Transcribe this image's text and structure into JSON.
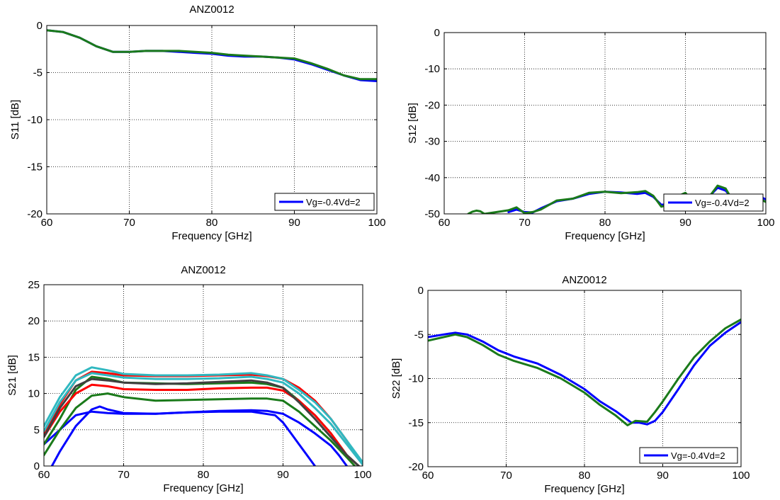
{
  "chart_data": [
    {
      "id": "s11",
      "type": "line",
      "title": "ANZ0012",
      "xlabel": "Frequency [GHz]",
      "ylabel": "S11 [dB]",
      "xlim": [
        60,
        100
      ],
      "ylim": [
        -20,
        0
      ],
      "xticks": [
        "60",
        "70",
        "80",
        "90",
        "100"
      ],
      "yticks": [
        "-20",
        "-15",
        "-10",
        "-5",
        "0"
      ],
      "grid": true,
      "legend": {
        "label": "Vg=-0.4Vd=2",
        "placement": "bottom-right"
      },
      "series": [
        {
          "name": "Vg=-0.4Vd=2",
          "color": "#0000ff",
          "x": [
            60,
            62,
            64,
            66,
            68,
            70,
            72,
            74,
            76,
            78,
            80,
            82,
            84,
            86,
            88,
            90,
            92,
            94,
            96,
            98,
            100
          ],
          "y": [
            -0.5,
            -0.7,
            -1.3,
            -2.2,
            -2.8,
            -2.8,
            -2.7,
            -2.7,
            -2.8,
            -2.9,
            -3.0,
            -3.2,
            -3.3,
            -3.3,
            -3.4,
            -3.6,
            -4.1,
            -4.7,
            -5.3,
            -5.8,
            -5.9
          ]
        },
        {
          "color": "#1a7a1a",
          "x": [
            60,
            62,
            64,
            66,
            68,
            70,
            72,
            74,
            76,
            78,
            80,
            82,
            84,
            86,
            88,
            90,
            92,
            94,
            96,
            98,
            100
          ],
          "y": [
            -0.5,
            -0.7,
            -1.3,
            -2.2,
            -2.8,
            -2.8,
            -2.7,
            -2.7,
            -2.7,
            -2.8,
            -2.9,
            -3.1,
            -3.2,
            -3.3,
            -3.4,
            -3.5,
            -4.0,
            -4.6,
            -5.3,
            -5.7,
            -5.7
          ]
        }
      ]
    },
    {
      "id": "s12",
      "type": "line",
      "title": "",
      "xlabel": "Frequency [GHz]",
      "ylabel": "S12 [dB]",
      "xlim": [
        60,
        100
      ],
      "ylim": [
        -50,
        0
      ],
      "xticks": [
        "60",
        "70",
        "80",
        "90",
        "100"
      ],
      "yticks": [
        "-50",
        "-40",
        "-30",
        "-20",
        "-10",
        "0"
      ],
      "grid": true,
      "legend": {
        "label": "Vg=-0.4Vd=2",
        "placement": "bottom-right"
      },
      "series": [
        {
          "name": "Vg=-0.4Vd=2",
          "color": "#0000ff",
          "x": [
            68,
            69,
            70,
            71,
            72,
            74,
            76,
            78,
            80,
            82,
            84,
            85,
            86,
            87,
            88,
            89,
            90,
            91,
            92,
            93,
            94,
            95,
            96,
            97,
            98,
            99,
            100
          ],
          "y": [
            -49.5,
            -48.8,
            -49.5,
            -49.6,
            -48.5,
            -46.5,
            -45.8,
            -44.5,
            -43.9,
            -44.1,
            -44.5,
            -44.2,
            -45.3,
            -47.5,
            -47.2,
            -45.0,
            -45.5,
            -47.0,
            -46.2,
            -45.1,
            -42.8,
            -43.6,
            -46.2,
            -46.6,
            -45.2,
            -45.0,
            -46.0
          ]
        },
        {
          "color": "#1a7a1a",
          "x": [
            63,
            63.5,
            64,
            64.5,
            65,
            68,
            69,
            70,
            71,
            72,
            74,
            76,
            78,
            80,
            82,
            84,
            85,
            86,
            87,
            88,
            89,
            90,
            91,
            92,
            93,
            94,
            95,
            96,
            97,
            98,
            99,
            100
          ],
          "y": [
            -50,
            -49.4,
            -49.1,
            -49.3,
            -50,
            -49.0,
            -48.2,
            -49.8,
            -49.5,
            -48.8,
            -46.3,
            -45.8,
            -44.2,
            -43.9,
            -44.3,
            -44.0,
            -43.7,
            -45.0,
            -48.0,
            -47.4,
            -45.2,
            -44.2,
            -46.8,
            -46.8,
            -45.2,
            -42.2,
            -43.0,
            -46.8,
            -47.2,
            -45.8,
            -45.6,
            -46.7
          ]
        }
      ]
    },
    {
      "id": "s21",
      "type": "line",
      "title": "ANZ0012",
      "xlabel": "Frequency [GHz]",
      "ylabel": "S21 [dB]",
      "xlim": [
        60,
        100
      ],
      "ylim": [
        0,
        25
      ],
      "xticks": [
        "60",
        "70",
        "80",
        "90",
        "100"
      ],
      "yticks": [
        "0",
        "5",
        "10",
        "15",
        "20",
        "25"
      ],
      "grid": true,
      "series": [
        {
          "color": "#0000ff",
          "x": [
            60,
            62,
            64,
            66,
            68,
            70,
            74,
            78,
            82,
            86,
            89,
            90,
            91,
            92,
            93,
            94
          ],
          "y": [
            3.0,
            5.0,
            7.0,
            7.5,
            7.3,
            7.2,
            7.2,
            7.4,
            7.5,
            7.5,
            7.0,
            6.0,
            4.5,
            3.0,
            1.5,
            0
          ]
        },
        {
          "color": "#0000ff",
          "x": [
            61,
            62,
            64,
            66,
            67,
            68,
            70,
            74,
            78,
            82,
            86,
            88,
            90,
            92,
            94,
            96,
            97,
            98
          ],
          "y": [
            0,
            2.0,
            5.5,
            7.8,
            8.2,
            7.8,
            7.3,
            7.2,
            7.4,
            7.6,
            7.7,
            7.6,
            7.2,
            6.0,
            4.5,
            2.8,
            1.5,
            0
          ]
        },
        {
          "color": "#1a7a1a",
          "x": [
            60,
            62,
            64,
            66,
            68,
            70,
            74,
            78,
            82,
            86,
            88,
            90,
            92,
            94,
            96,
            98,
            99
          ],
          "y": [
            1.5,
            5.0,
            8.0,
            9.7,
            10.0,
            9.5,
            9.0,
            9.1,
            9.2,
            9.3,
            9.3,
            9.0,
            7.5,
            5.5,
            3.5,
            1.2,
            0
          ]
        },
        {
          "color": "#1a7a1a",
          "x": [
            60,
            62,
            64,
            66,
            68,
            70,
            74,
            78,
            82,
            86,
            88,
            90,
            92,
            94,
            96,
            98,
            99.5
          ],
          "y": [
            3.0,
            6.5,
            10.5,
            12.3,
            12.0,
            11.5,
            11.4,
            11.3,
            11.4,
            11.5,
            11.3,
            10.8,
            9.0,
            7.0,
            4.5,
            1.5,
            0
          ]
        },
        {
          "color": "#ff0000",
          "x": [
            60,
            62,
            64,
            66,
            68,
            70,
            74,
            78,
            82,
            86,
            88,
            90,
            92,
            94,
            96,
            98,
            99.5
          ],
          "y": [
            4.0,
            7.5,
            10.0,
            11.2,
            11.0,
            10.6,
            10.5,
            10.5,
            10.7,
            10.8,
            10.8,
            10.4,
            9.0,
            7.0,
            4.5,
            1.5,
            0
          ]
        },
        {
          "color": "#ff0000",
          "x": [
            60,
            62,
            64,
            66,
            68,
            70,
            74,
            78,
            82,
            86,
            88,
            90,
            92,
            94,
            96,
            98,
            100
          ],
          "y": [
            4.5,
            8.5,
            11.8,
            13.0,
            12.8,
            12.5,
            12.4,
            12.4,
            12.5,
            12.6,
            12.4,
            12.0,
            10.8,
            9.0,
            6.5,
            3.5,
            0.2
          ]
        },
        {
          "color": "#404040",
          "x": [
            60,
            62,
            64,
            66,
            68,
            70,
            74,
            78,
            82,
            86,
            88,
            90,
            92,
            94,
            96,
            98,
            99.5
          ],
          "y": [
            4.0,
            8.0,
            11.0,
            12.0,
            11.8,
            11.5,
            11.3,
            11.4,
            11.6,
            11.8,
            11.5,
            10.8,
            8.8,
            6.5,
            4.0,
            1.5,
            0
          ]
        },
        {
          "color": "#30b8c0",
          "x": [
            60,
            62,
            64,
            66,
            68,
            70,
            74,
            78,
            82,
            86,
            88,
            90,
            92,
            94,
            96,
            98,
            100
          ],
          "y": [
            5.5,
            9.5,
            12.5,
            13.6,
            13.2,
            12.7,
            12.5,
            12.5,
            12.6,
            12.8,
            12.5,
            12.0,
            10.5,
            8.8,
            6.5,
            3.5,
            0.5
          ]
        },
        {
          "color": "#30b8c0",
          "x": [
            60,
            62,
            64,
            66,
            68,
            70,
            74,
            78,
            82,
            86,
            88,
            90,
            92,
            94,
            96,
            98,
            100
          ],
          "y": [
            4.8,
            8.8,
            11.8,
            12.8,
            12.5,
            12.2,
            12.0,
            12.0,
            12.1,
            12.3,
            12.0,
            11.5,
            10.0,
            8.0,
            5.8,
            3.0,
            0.2
          ]
        }
      ]
    },
    {
      "id": "s22",
      "type": "line",
      "title": "ANZ0012",
      "xlabel": "Frequency [GHz]",
      "ylabel": "S22 [dB]",
      "xlim": [
        60,
        100
      ],
      "ylim": [
        -20,
        0
      ],
      "xticks": [
        "60",
        "70",
        "80",
        "90",
        "100"
      ],
      "yticks": [
        "-20",
        "-15",
        "-10",
        "-5",
        "0"
      ],
      "grid": true,
      "legend": {
        "label": "Vg=-0.4Vd=2",
        "placement": "bottom-right"
      },
      "series": [
        {
          "name": "Vg=-0.4Vd=2",
          "color": "#0000ff",
          "x": [
            60,
            62,
            63.5,
            65,
            67,
            69,
            71,
            74,
            77,
            80,
            82,
            84,
            86,
            87,
            88,
            89,
            90,
            92,
            94,
            96,
            98,
            100
          ],
          "y": [
            -5.3,
            -5.0,
            -4.8,
            -5.0,
            -5.8,
            -6.8,
            -7.5,
            -8.3,
            -9.6,
            -11.2,
            -12.6,
            -13.7,
            -15.0,
            -15.0,
            -15.2,
            -14.8,
            -13.8,
            -11.2,
            -8.5,
            -6.3,
            -4.8,
            -3.6
          ]
        },
        {
          "color": "#1a7a1a",
          "x": [
            60,
            62,
            63.5,
            65,
            67,
            69,
            71,
            74,
            77,
            80,
            82,
            84,
            85.5,
            86.5,
            88,
            89,
            90,
            92,
            94,
            96,
            98,
            100
          ],
          "y": [
            -5.7,
            -5.3,
            -5.0,
            -5.3,
            -6.2,
            -7.3,
            -8.0,
            -8.8,
            -10.0,
            -11.6,
            -13.0,
            -14.2,
            -15.3,
            -14.8,
            -14.9,
            -13.8,
            -12.6,
            -10.0,
            -7.6,
            -5.8,
            -4.3,
            -3.3
          ]
        }
      ]
    }
  ]
}
